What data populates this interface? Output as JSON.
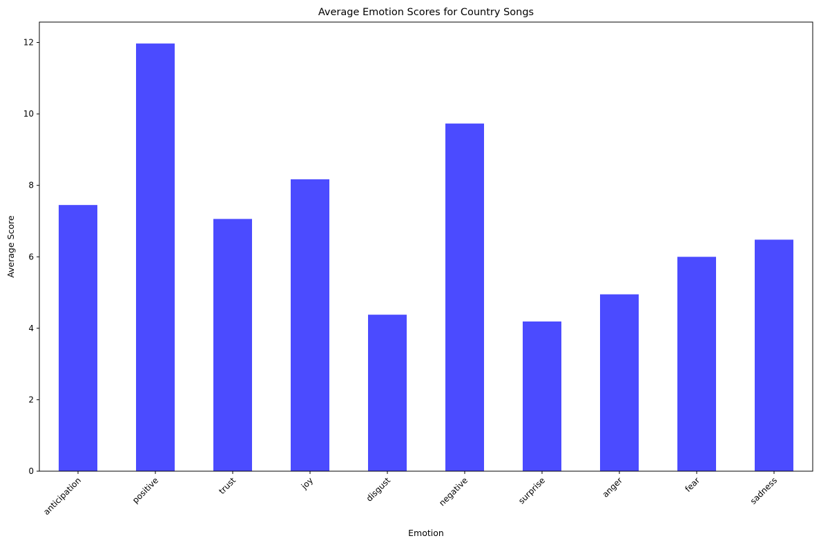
{
  "chart_data": {
    "type": "bar",
    "title": "Average Emotion Scores for Country Songs",
    "xlabel": "Emotion",
    "ylabel": "Average Score",
    "categories": [
      "anticipation",
      "positive",
      "trust",
      "joy",
      "disgust",
      "negative",
      "surprise",
      "anger",
      "fear",
      "sadness"
    ],
    "values": [
      7.45,
      11.97,
      7.06,
      8.17,
      4.38,
      9.73,
      4.19,
      4.95,
      6.0,
      6.48
    ],
    "ylim": [
      0,
      12.57
    ],
    "yticks": [
      0,
      2,
      4,
      6,
      8,
      10,
      12
    ],
    "bar_color": "#4b4bff",
    "grid": false,
    "legend": "none"
  }
}
